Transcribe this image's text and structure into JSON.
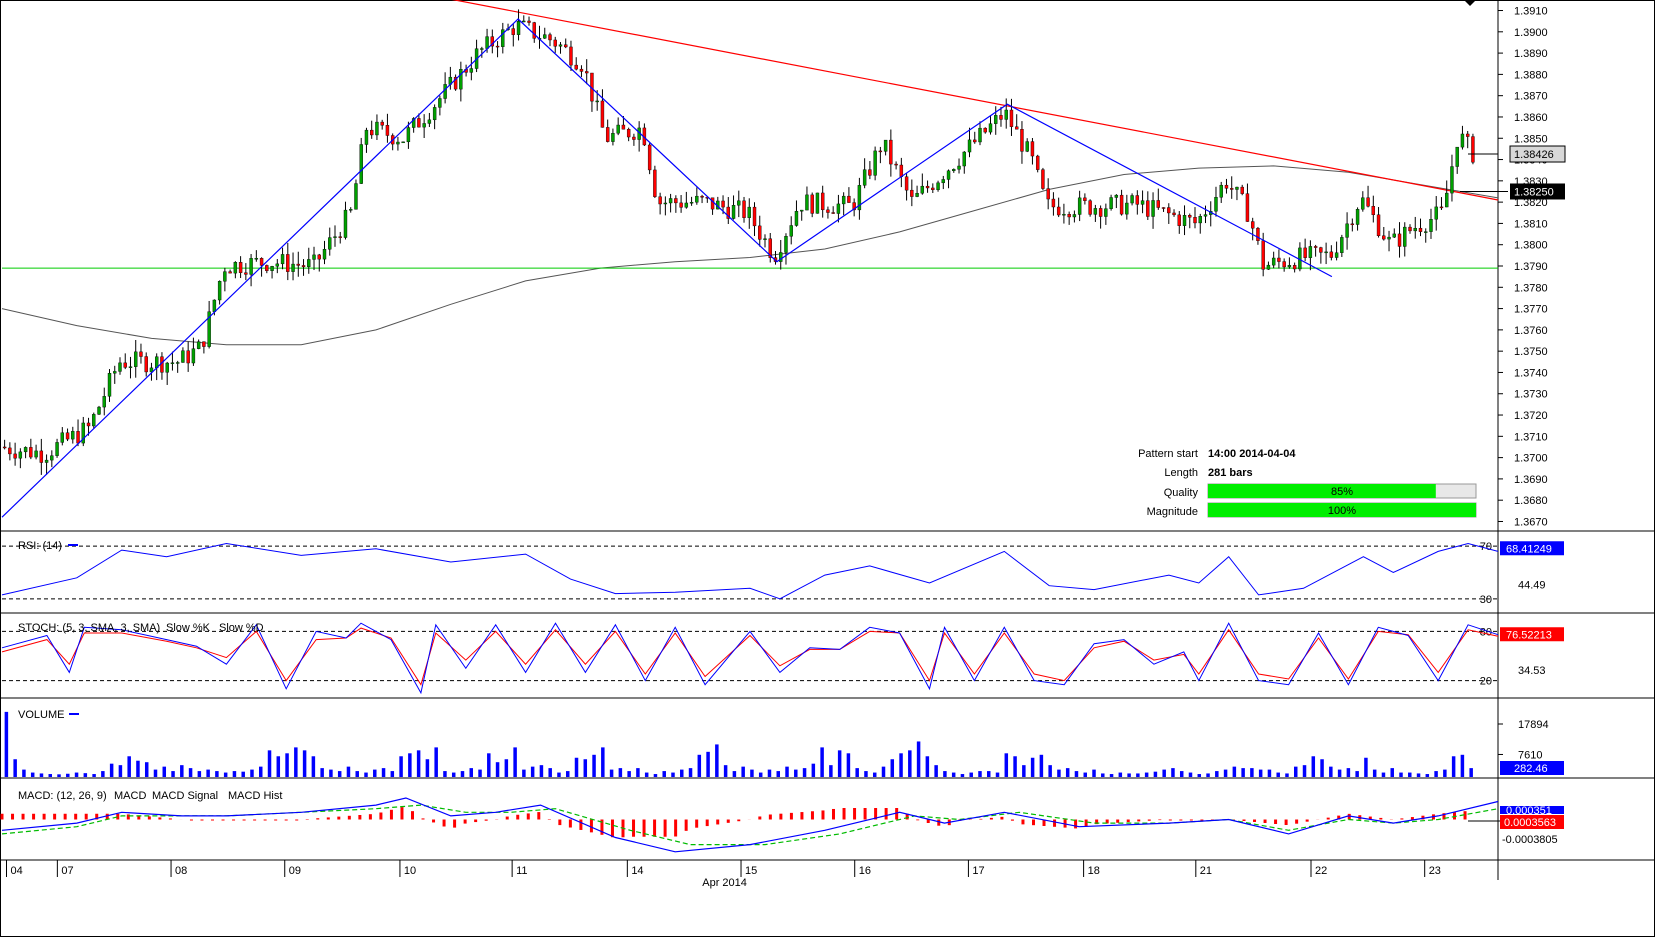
{
  "chart_data": [
    {
      "panel": "price",
      "type": "candlestick",
      "y_ticks": [
        "1.3910",
        "1.3900",
        "1.3890",
        "1.3880",
        "1.3870",
        "1.3860",
        "1.3850",
        "1.3840",
        "1.3830",
        "1.3820",
        "1.3810",
        "1.3800",
        "1.3790",
        "1.3780",
        "1.3770",
        "1.3760",
        "1.3750",
        "1.3740",
        "1.3730",
        "1.3720",
        "1.3710",
        "1.3700",
        "1.3690",
        "1.3680",
        "1.3670"
      ],
      "ylim": [
        1.3666,
        1.3914
      ],
      "last_price": "1.38426",
      "level_price": "1.38250",
      "support_level": 1.3789,
      "resistance_line": {
        "from": [
          0.28,
          1.3918
        ],
        "to": [
          1.0,
          1.3821
        ]
      },
      "zigzag": [
        [
          0.0,
          1.3672
        ],
        [
          0.345,
          1.3906
        ],
        [
          0.518,
          1.3792
        ],
        [
          0.672,
          1.3866
        ],
        [
          0.889,
          1.3785
        ]
      ],
      "moving_average": [
        [
          0.0,
          1.377
        ],
        [
          0.05,
          1.3762
        ],
        [
          0.1,
          1.3756
        ],
        [
          0.15,
          1.3753
        ],
        [
          0.2,
          1.3753
        ],
        [
          0.25,
          1.376
        ],
        [
          0.3,
          1.3772
        ],
        [
          0.35,
          1.3783
        ],
        [
          0.4,
          1.3789
        ],
        [
          0.45,
          1.3792
        ],
        [
          0.5,
          1.3794
        ],
        [
          0.55,
          1.3798
        ],
        [
          0.6,
          1.3806
        ],
        [
          0.65,
          1.3816
        ],
        [
          0.7,
          1.3826
        ],
        [
          0.75,
          1.3833
        ],
        [
          0.8,
          1.3836
        ],
        [
          0.85,
          1.3837
        ],
        [
          0.9,
          1.3834
        ],
        [
          0.95,
          1.3828
        ],
        [
          1.0,
          1.3822
        ]
      ],
      "price_path": [
        [
          0.0,
          1.3705
        ],
        [
          0.03,
          1.3702
        ],
        [
          0.06,
          1.3714
        ],
        [
          0.08,
          1.3745
        ],
        [
          0.12,
          1.3745
        ],
        [
          0.135,
          1.3752
        ],
        [
          0.15,
          1.379
        ],
        [
          0.18,
          1.3792
        ],
        [
          0.21,
          1.379
        ],
        [
          0.235,
          1.3815
        ],
        [
          0.245,
          1.3855
        ],
        [
          0.27,
          1.385
        ],
        [
          0.3,
          1.3873
        ],
        [
          0.32,
          1.389
        ],
        [
          0.345,
          1.3903
        ],
        [
          0.37,
          1.3896
        ],
        [
          0.39,
          1.3885
        ],
        [
          0.405,
          1.385
        ],
        [
          0.43,
          1.3855
        ],
        [
          0.44,
          1.382
        ],
        [
          0.47,
          1.382
        ],
        [
          0.5,
          1.3815
        ],
        [
          0.518,
          1.3795
        ],
        [
          0.535,
          1.382
        ],
        [
          0.57,
          1.3818
        ],
        [
          0.59,
          1.3848
        ],
        [
          0.61,
          1.382
        ],
        [
          0.64,
          1.384
        ],
        [
          0.672,
          1.3862
        ],
        [
          0.69,
          1.384
        ],
        [
          0.7,
          1.3818
        ],
        [
          0.73,
          1.3818
        ],
        [
          0.76,
          1.3819
        ],
        [
          0.8,
          1.381
        ],
        [
          0.82,
          1.383
        ],
        [
          0.835,
          1.3815
        ],
        [
          0.845,
          1.379
        ],
        [
          0.87,
          1.3794
        ],
        [
          0.89,
          1.3795
        ],
        [
          0.91,
          1.3822
        ],
        [
          0.93,
          1.38
        ],
        [
          0.945,
          1.3808
        ],
        [
          0.965,
          1.3815
        ],
        [
          0.975,
          1.3852
        ],
        [
          0.985,
          1.3843
        ]
      ],
      "info": {
        "pattern_start_label": "Pattern start",
        "pattern_start_value": "14:00 2014-04-04",
        "length_label": "Length",
        "length_value": "281 bars",
        "quality_label": "Quality",
        "quality_value": "85%",
        "quality": 0.85,
        "magnitude_label": "Magnitude",
        "magnitude_value": "100%",
        "magnitude": 1.0
      }
    },
    {
      "panel": "rsi",
      "type": "line",
      "title": "RSI: (14)",
      "levels": [
        "70",
        "30"
      ],
      "mid_label": "44.49",
      "current": "68.41249",
      "ylim": [
        20,
        80
      ],
      "path": [
        [
          0,
          33
        ],
        [
          0.05,
          46
        ],
        [
          0.08,
          67
        ],
        [
          0.11,
          62
        ],
        [
          0.15,
          72
        ],
        [
          0.2,
          63
        ],
        [
          0.25,
          68
        ],
        [
          0.3,
          58
        ],
        [
          0.35,
          64
        ],
        [
          0.38,
          45
        ],
        [
          0.41,
          34
        ],
        [
          0.45,
          35
        ],
        [
          0.5,
          38
        ],
        [
          0.52,
          30
        ],
        [
          0.55,
          48
        ],
        [
          0.58,
          55
        ],
        [
          0.62,
          42
        ],
        [
          0.67,
          66
        ],
        [
          0.7,
          40
        ],
        [
          0.73,
          37
        ],
        [
          0.78,
          48
        ],
        [
          0.8,
          42
        ],
        [
          0.82,
          62
        ],
        [
          0.84,
          33
        ],
        [
          0.87,
          38
        ],
        [
          0.91,
          62
        ],
        [
          0.93,
          50
        ],
        [
          0.96,
          66
        ],
        [
          0.98,
          72
        ],
        [
          1.0,
          66
        ]
      ]
    },
    {
      "panel": "stoch",
      "type": "line",
      "title": "STOCH: (5, 3, SMA, 3, SMA)",
      "slow_k": "Slow %K",
      "slow_d": "Slow %D",
      "levels": [
        "80",
        "20"
      ],
      "mid_label": "34.53",
      "current": "76.52213",
      "ylim": [
        0,
        100
      ],
      "k": [
        [
          0,
          60
        ],
        [
          0.03,
          75
        ],
        [
          0.045,
          30
        ],
        [
          0.055,
          85
        ],
        [
          0.08,
          82
        ],
        [
          0.11,
          70
        ],
        [
          0.13,
          62
        ],
        [
          0.15,
          40
        ],
        [
          0.17,
          88
        ],
        [
          0.19,
          10
        ],
        [
          0.21,
          80
        ],
        [
          0.23,
          72
        ],
        [
          0.24,
          90
        ],
        [
          0.26,
          70
        ],
        [
          0.28,
          5
        ],
        [
          0.29,
          88
        ],
        [
          0.31,
          35
        ],
        [
          0.33,
          88
        ],
        [
          0.35,
          30
        ],
        [
          0.37,
          90
        ],
        [
          0.39,
          30
        ],
        [
          0.41,
          88
        ],
        [
          0.43,
          20
        ],
        [
          0.45,
          85
        ],
        [
          0.47,
          15
        ],
        [
          0.5,
          80
        ],
        [
          0.52,
          30
        ],
        [
          0.54,
          60
        ],
        [
          0.56,
          58
        ],
        [
          0.58,
          85
        ],
        [
          0.6,
          78
        ],
        [
          0.62,
          10
        ],
        [
          0.63,
          85
        ],
        [
          0.65,
          20
        ],
        [
          0.67,
          85
        ],
        [
          0.69,
          20
        ],
        [
          0.71,
          15
        ],
        [
          0.73,
          65
        ],
        [
          0.75,
          70
        ],
        [
          0.77,
          40
        ],
        [
          0.79,
          55
        ],
        [
          0.8,
          20
        ],
        [
          0.82,
          90
        ],
        [
          0.84,
          20
        ],
        [
          0.86,
          15
        ],
        [
          0.88,
          78
        ],
        [
          0.9,
          15
        ],
        [
          0.92,
          85
        ],
        [
          0.94,
          75
        ],
        [
          0.96,
          20
        ],
        [
          0.98,
          88
        ],
        [
          1.0,
          76
        ]
      ],
      "d": [
        [
          0,
          55
        ],
        [
          0.03,
          70
        ],
        [
          0.045,
          40
        ],
        [
          0.055,
          78
        ],
        [
          0.08,
          78
        ],
        [
          0.11,
          68
        ],
        [
          0.13,
          60
        ],
        [
          0.15,
          48
        ],
        [
          0.17,
          80
        ],
        [
          0.19,
          20
        ],
        [
          0.21,
          70
        ],
        [
          0.23,
          72
        ],
        [
          0.24,
          84
        ],
        [
          0.26,
          72
        ],
        [
          0.28,
          15
        ],
        [
          0.29,
          78
        ],
        [
          0.31,
          45
        ],
        [
          0.33,
          80
        ],
        [
          0.35,
          40
        ],
        [
          0.37,
          82
        ],
        [
          0.39,
          40
        ],
        [
          0.41,
          80
        ],
        [
          0.43,
          28
        ],
        [
          0.45,
          78
        ],
        [
          0.47,
          25
        ],
        [
          0.5,
          75
        ],
        [
          0.52,
          38
        ],
        [
          0.54,
          58
        ],
        [
          0.56,
          58
        ],
        [
          0.58,
          80
        ],
        [
          0.6,
          78
        ],
        [
          0.62,
          20
        ],
        [
          0.63,
          78
        ],
        [
          0.65,
          28
        ],
        [
          0.67,
          78
        ],
        [
          0.69,
          28
        ],
        [
          0.71,
          20
        ],
        [
          0.73,
          60
        ],
        [
          0.75,
          68
        ],
        [
          0.77,
          45
        ],
        [
          0.79,
          52
        ],
        [
          0.8,
          28
        ],
        [
          0.82,
          82
        ],
        [
          0.84,
          28
        ],
        [
          0.86,
          22
        ],
        [
          0.88,
          72
        ],
        [
          0.9,
          22
        ],
        [
          0.92,
          80
        ],
        [
          0.94,
          76
        ],
        [
          0.96,
          30
        ],
        [
          0.98,
          82
        ],
        [
          1.0,
          74
        ]
      ]
    },
    {
      "panel": "volume",
      "type": "bar",
      "title": "VOLUME",
      "y_ticks": [
        "17894",
        "7610"
      ],
      "current": "282.46",
      "ylim": [
        0,
        26000
      ],
      "values": [
        22000,
        6000,
        2500,
        1500,
        1200,
        1000,
        900,
        1100,
        1500,
        1300,
        1000,
        2000,
        4500,
        4000,
        7000,
        5500,
        5000,
        2500,
        3500,
        2000,
        4000,
        3000,
        2000,
        2500,
        2000,
        1500,
        2000,
        1800,
        2500,
        3500,
        9000,
        7000,
        8000,
        10000,
        9000,
        7000,
        3000,
        2500,
        2000,
        3500,
        2000,
        1500,
        2500,
        3000,
        2000,
        7000,
        8000,
        9000,
        6000,
        10000,
        2000,
        1500,
        2000,
        3000,
        2500,
        8000,
        5000,
        6000,
        10000,
        2500,
        3500,
        4000,
        3000,
        1500,
        2000,
        6500,
        6000,
        7500,
        10000,
        2500,
        3000,
        2000,
        3000,
        1500,
        1000,
        2000,
        1500,
        2500,
        3000,
        7500,
        8500,
        11000,
        4000,
        2000,
        3500,
        2500,
        1500,
        2500,
        2000,
        3500,
        2500,
        3000,
        4500,
        10000,
        4000,
        9000,
        8000,
        3000,
        2000,
        1500,
        3500,
        6000,
        8000,
        9000,
        12000,
        7000,
        4000,
        2000,
        1500,
        1000,
        1500,
        2000,
        2000,
        1500,
        8000,
        7000,
        4000,
        6500,
        7500,
        4000,
        2500,
        3000,
        2000,
        1500,
        2500,
        1200,
        1000,
        1500,
        1200,
        1200,
        1500,
        1800,
        2500,
        3000,
        2000,
        1500,
        1000,
        1200,
        2000,
        2500,
        3500,
        3000,
        3000,
        2500,
        2500,
        1500,
        1200,
        3500,
        4000,
        7000,
        6000,
        3500,
        2500,
        3000,
        2000,
        6500,
        2500,
        1500,
        3000,
        1500,
        1500,
        1200,
        1000,
        2000,
        2500,
        7000,
        7500,
        3000
      ],
      "color": "#0000ff"
    },
    {
      "panel": "macd",
      "type": "line",
      "title": "MACD: (12, 26, 9)",
      "macd_label": "MACD",
      "signal_label": "MACD Signal",
      "hist_label": "MACD Hist",
      "labels": [
        "0.0003563",
        "-0.0003805"
      ],
      "current_macd": "0.000351",
      "ylim": [
        -0.0011,
        0.0011
      ],
      "macd": [
        [
          0,
          -0.0003
        ],
        [
          0.05,
          -0.0001
        ],
        [
          0.08,
          0.0002
        ],
        [
          0.12,
          0.0001
        ],
        [
          0.15,
          0.0001
        ],
        [
          0.2,
          0.0002
        ],
        [
          0.25,
          0.0004
        ],
        [
          0.27,
          0.0006
        ],
        [
          0.3,
          0.0001
        ],
        [
          0.33,
          0.0002
        ],
        [
          0.36,
          0.0004
        ],
        [
          0.41,
          -0.0005
        ],
        [
          0.45,
          -0.0009
        ],
        [
          0.5,
          -0.0007
        ],
        [
          0.55,
          -0.0003
        ],
        [
          0.6,
          0.0002
        ],
        [
          0.63,
          -0.0001
        ],
        [
          0.67,
          0.0002
        ],
        [
          0.72,
          -0.0002
        ],
        [
          0.78,
          -0.0001
        ],
        [
          0.82,
          0.0
        ],
        [
          0.86,
          -0.0004
        ],
        [
          0.9,
          0.0001
        ],
        [
          0.93,
          -0.0001
        ],
        [
          0.96,
          0.0001
        ],
        [
          1.0,
          0.0005
        ]
      ],
      "signal": [
        [
          0,
          -0.0004
        ],
        [
          0.05,
          -0.0002
        ],
        [
          0.08,
          0.0001
        ],
        [
          0.12,
          0.0001
        ],
        [
          0.15,
          0.0001
        ],
        [
          0.2,
          0.0002
        ],
        [
          0.25,
          0.0003
        ],
        [
          0.28,
          0.0004
        ],
        [
          0.31,
          0.0002
        ],
        [
          0.34,
          0.0002
        ],
        [
          0.37,
          0.0003
        ],
        [
          0.42,
          -0.0003
        ],
        [
          0.46,
          -0.0007
        ],
        [
          0.51,
          -0.0007
        ],
        [
          0.56,
          -0.0004
        ],
        [
          0.61,
          0.0001
        ],
        [
          0.64,
          0.0
        ],
        [
          0.68,
          0.0002
        ],
        [
          0.73,
          -0.0001
        ],
        [
          0.78,
          -0.0001
        ],
        [
          0.82,
          0.0
        ],
        [
          0.86,
          -0.0003
        ],
        [
          0.9,
          0.0
        ],
        [
          0.93,
          -0.0001
        ],
        [
          0.96,
          0.0
        ],
        [
          1.0,
          0.0003
        ]
      ]
    }
  ],
  "x_axis": {
    "day_labels": [
      {
        "text": "04",
        "f": 0.003
      },
      {
        "text": "07",
        "f": 0.037
      },
      {
        "text": "08",
        "f": 0.113
      },
      {
        "text": "09",
        "f": 0.189
      },
      {
        "text": "10",
        "f": 0.266
      },
      {
        "text": "11",
        "f": 0.341
      },
      {
        "text": "14",
        "f": 0.418
      },
      {
        "text": "15",
        "f": 0.494
      },
      {
        "text": "16",
        "f": 0.57
      },
      {
        "text": "17",
        "f": 0.646
      },
      {
        "text": "18",
        "f": 0.723
      },
      {
        "text": "21",
        "f": 0.798
      },
      {
        "text": "22",
        "f": 0.875
      },
      {
        "text": "23",
        "f": 0.951
      }
    ],
    "month_label": "Apr 2014",
    "month_f": 0.483
  },
  "colors": {
    "up_candle": "#00a000",
    "down_candle": "#ff0000",
    "wick": "#000000",
    "resistance": "#ff0000",
    "support": "#00cc00",
    "zigzag": "#0000ff",
    "ma": "#555555",
    "rsi": "#0000ff",
    "stoch_k": "#0000ff",
    "stoch_d": "#ff0000",
    "macd": "#0000ff",
    "signal": "#00bb00",
    "hist": "#ff0000",
    "price_badge_bg": "#d8d8d8",
    "level_badge_bg": "#000000",
    "indicator_badge_bg": "#0000ff",
    "macd_badge_bg": "#ff0000"
  }
}
